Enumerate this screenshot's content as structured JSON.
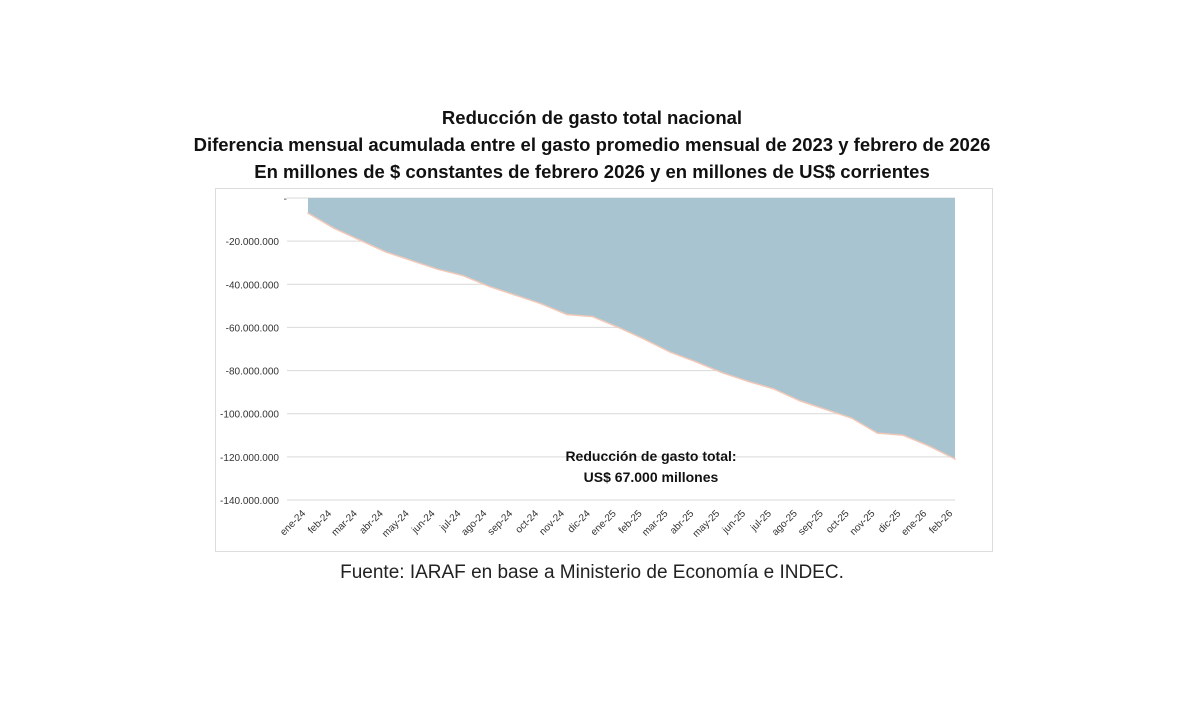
{
  "titles": {
    "line1": "Reducción de gasto total nacional",
    "line2": "Diferencia mensual acumulada entre el gasto promedio mensual de 2023 y febrero de 2026",
    "line3": "En millones de $ constantes de febrero 2026 y en millones de US$ corrientes"
  },
  "source": "Fuente: IARAF en base a Ministerio de Economía e INDEC.",
  "chart_data": {
    "type": "area",
    "title": "Reducción de gasto total nacional",
    "categories": [
      "ene-24",
      "feb-24",
      "mar-24",
      "abr-24",
      "may-24",
      "jun-24",
      "jul-24",
      "ago-24",
      "sep-24",
      "oct-24",
      "nov-24",
      "dic-24",
      "ene-25",
      "feb-25",
      "mar-25",
      "abr-25",
      "may-25",
      "jun-25",
      "jul-25",
      "ago-25",
      "sep-25",
      "oct-25",
      "nov-25",
      "dic-25",
      "ene-26",
      "feb-26"
    ],
    "values": [
      -7000000,
      -14000000,
      -19500000,
      -25000000,
      -29000000,
      -33000000,
      -36000000,
      -41000000,
      -45000000,
      -49000000,
      -54000000,
      -55000000,
      -60000000,
      -65500000,
      -71500000,
      -76000000,
      -81000000,
      -85000000,
      -88500000,
      -94000000,
      -98000000,
      -102000000,
      -109000000,
      -110000000,
      -115000000,
      -121000000
    ],
    "ylim": [
      -140000000,
      0
    ],
    "yticks": [
      "-",
      "-20.000.000",
      "-40.000.000",
      "-60.000.000",
      "-80.000.000",
      "-100.000.000",
      "-120.000.000",
      "-140.000.000"
    ],
    "grid": true,
    "fill_color": "#a9c4d1",
    "line_color": "#f0c8b8",
    "annotation": [
      "Reducción de gasto total:",
      "US$ 67.000 millones"
    ]
  }
}
